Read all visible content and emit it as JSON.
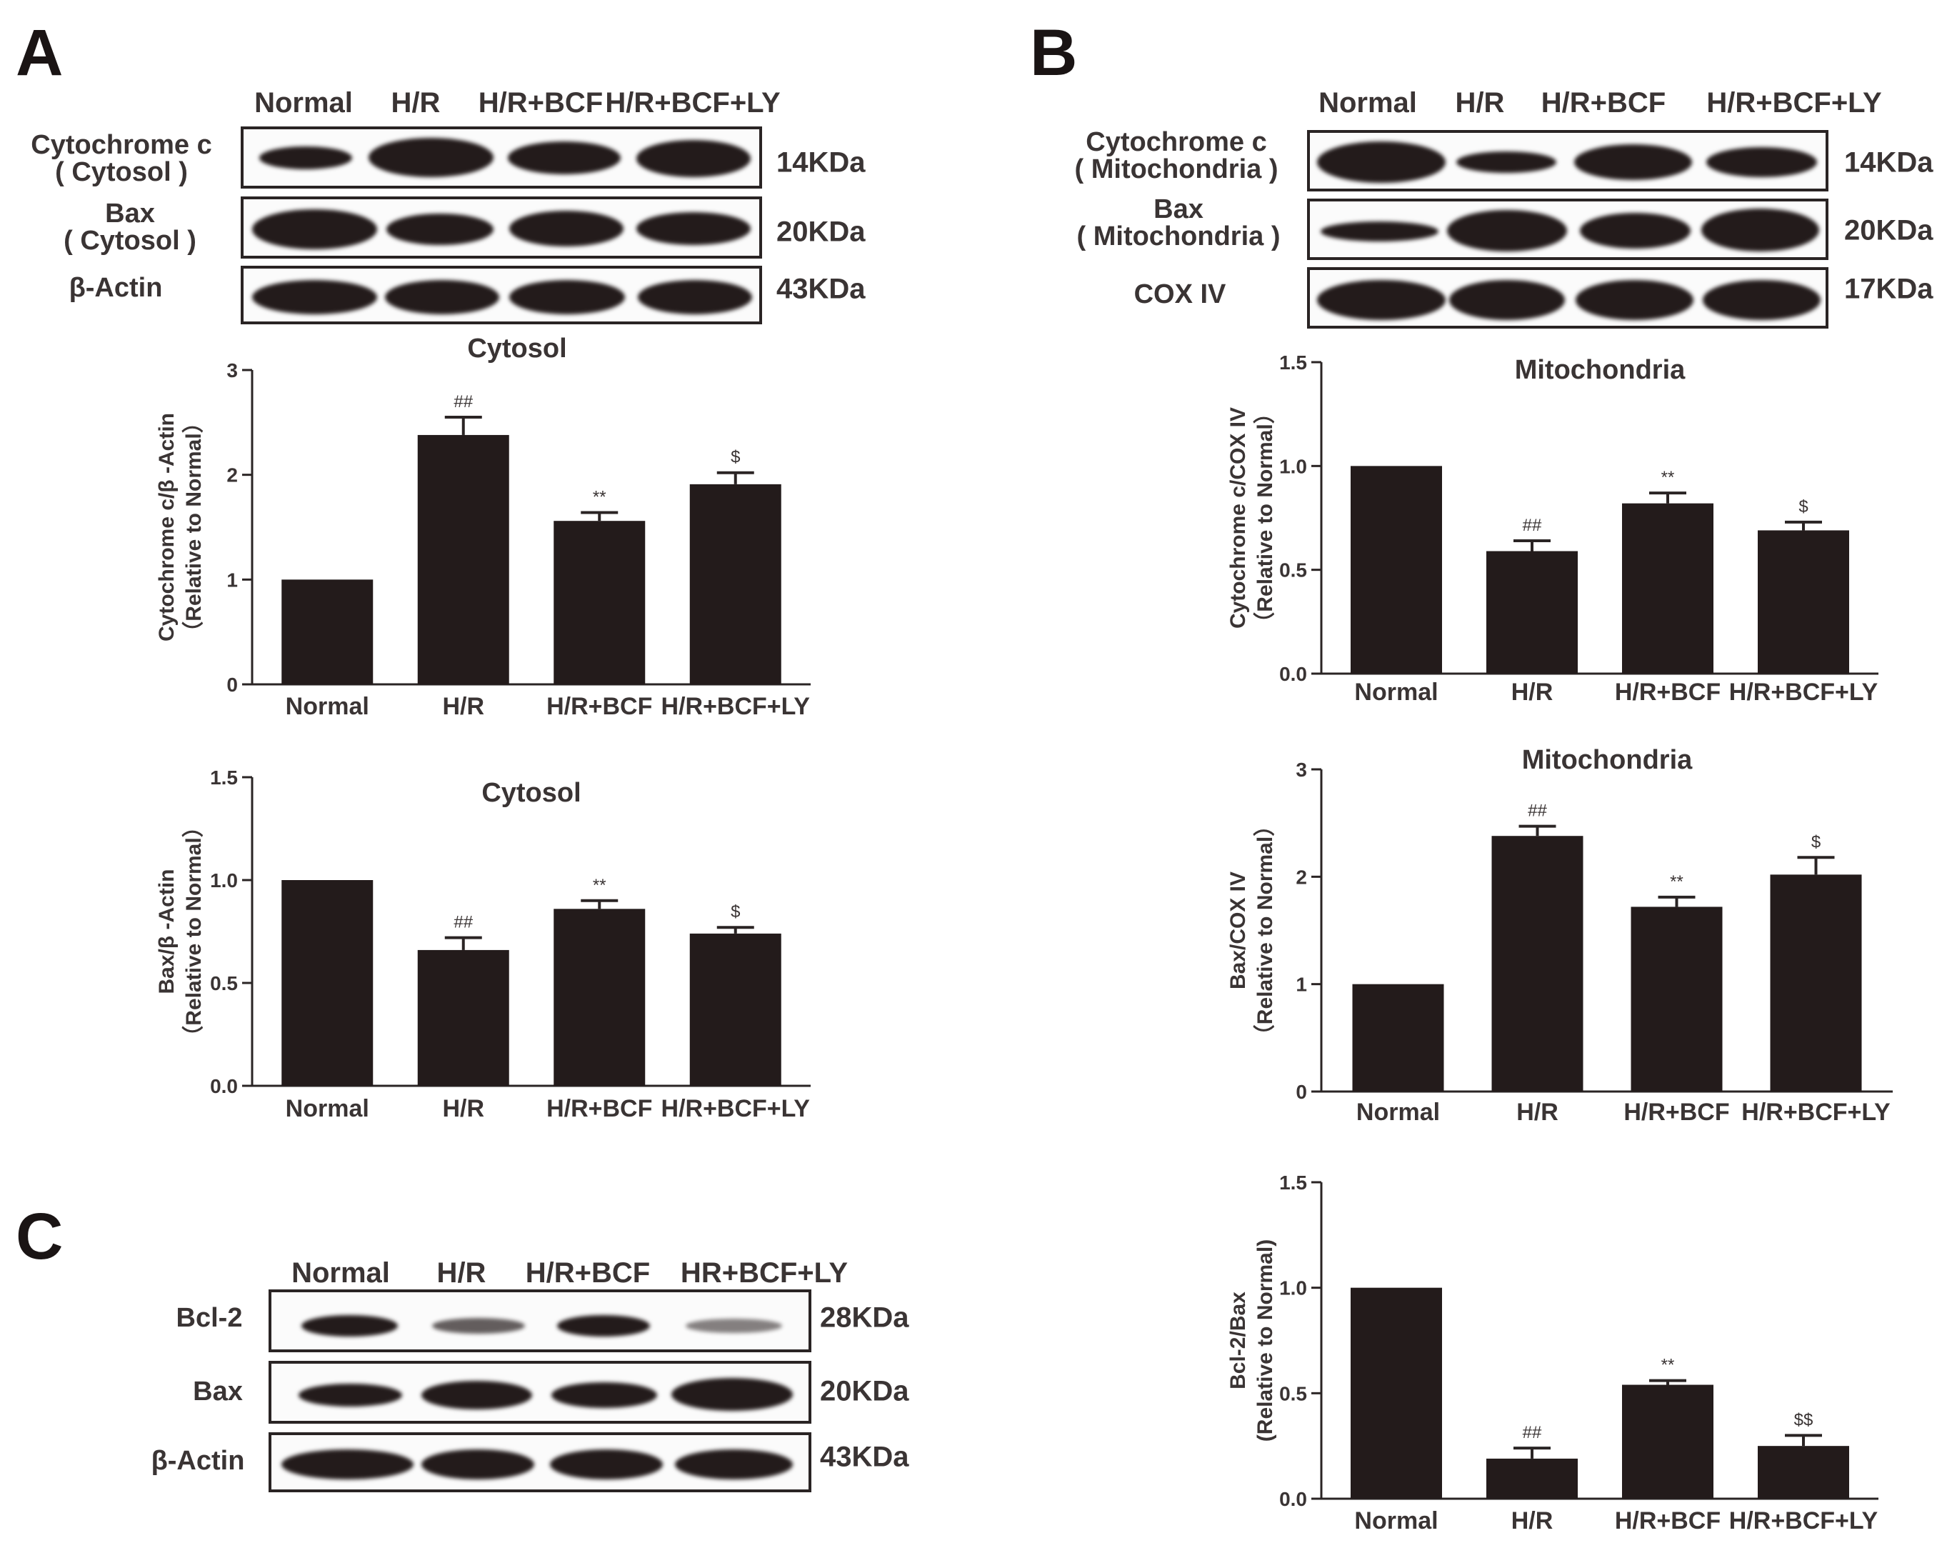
{
  "panels": {
    "A": {
      "letter": "A",
      "lanes": [
        "Normal",
        "H/R",
        "H/R+BCF",
        "H/R+BCF+LY"
      ],
      "blots": [
        {
          "label": "Cytochrome c\n( Cytosol )",
          "kda": "14KDa"
        },
        {
          "label": "Bax\n( Cytosol )",
          "kda": "20KDa"
        },
        {
          "label": "β-Actin",
          "kda": "43KDa"
        }
      ]
    },
    "B": {
      "letter": "B",
      "lanes": [
        "Normal",
        "H/R",
        "H/R+BCF",
        "H/R+BCF+LY"
      ],
      "blots": [
        {
          "label": "Cytochrome c\n( Mitochondria )",
          "kda": "14KDa"
        },
        {
          "label": "Bax\n( Mitochondria )",
          "kda": "20KDa"
        },
        {
          "label": "COX IV",
          "kda": "17KDa"
        }
      ]
    },
    "C": {
      "letter": "C",
      "lanes": [
        "Normal",
        "H/R",
        "H/R+BCF",
        "HR+BCF+LY"
      ],
      "blots": [
        {
          "label": "Bcl-2",
          "kda": "28KDa"
        },
        {
          "label": "Bax",
          "kda": "20KDa"
        },
        {
          "label": "β-Actin",
          "kda": "43KDa"
        }
      ]
    }
  },
  "colors": {
    "bar": "#231b1b",
    "text": "#3a3434"
  },
  "chart_data": [
    {
      "id": "A1",
      "type": "bar",
      "title": "Cytosol",
      "ylabel": "Cytochrome c/β -Actin",
      "ylabel2": "（Relative to Normal）",
      "categories": [
        "Normal",
        "H/R",
        "H/R+BCF",
        "H/R+BCF+LY"
      ],
      "values": [
        1.0,
        2.38,
        1.56,
        1.91
      ],
      "errors": [
        0,
        0.17,
        0.08,
        0.11
      ],
      "annotations": [
        "",
        "##",
        "**",
        "$"
      ],
      "ylim": [
        0,
        3
      ],
      "yticks": [
        "0",
        "1",
        "2",
        "3"
      ]
    },
    {
      "id": "A2",
      "type": "bar",
      "title": "Cytosol",
      "ylabel": "Bax/β -Actin",
      "ylabel2": "（Relative to Normal）",
      "categories": [
        "Normal",
        "H/R",
        "H/R+BCF",
        "H/R+BCF+LY"
      ],
      "values": [
        1.0,
        0.66,
        0.86,
        0.74
      ],
      "errors": [
        0,
        0.06,
        0.04,
        0.03
      ],
      "annotations": [
        "",
        "##",
        "**",
        "$"
      ],
      "ylim": [
        0,
        1.5
      ],
      "yticks": [
        "0.0",
        "0.5",
        "1.0",
        "1.5"
      ]
    },
    {
      "id": "B1",
      "type": "bar",
      "title": "Mitochondria",
      "ylabel": "Cytochrome c/COX IV",
      "ylabel2": "（Relative to Normal）",
      "categories": [
        "Normal",
        "H/R",
        "H/R+BCF",
        "H/R+BCF+LY"
      ],
      "values": [
        1.0,
        0.59,
        0.82,
        0.69
      ],
      "errors": [
        0,
        0.05,
        0.05,
        0.04
      ],
      "annotations": [
        "",
        "##",
        "**",
        "$"
      ],
      "ylim": [
        0,
        1.5
      ],
      "yticks": [
        "0.0",
        "0.5",
        "1.0",
        "1.5"
      ]
    },
    {
      "id": "B2",
      "type": "bar",
      "title": "Mitochondria",
      "ylabel": "Bax/COX IV",
      "ylabel2": "（Relative to Normal）",
      "categories": [
        "Normal",
        "H/R",
        "H/R+BCF",
        "H/R+BCF+LY"
      ],
      "values": [
        1.0,
        2.38,
        1.72,
        2.02
      ],
      "errors": [
        0,
        0.09,
        0.09,
        0.16
      ],
      "annotations": [
        "",
        "##",
        "**",
        "$"
      ],
      "ylim": [
        0,
        3
      ],
      "yticks": [
        "0",
        "1",
        "2",
        "3"
      ]
    },
    {
      "id": "C1",
      "type": "bar",
      "title": "",
      "ylabel": "Bcl-2/Bax",
      "ylabel2": "(Relative to Normal)",
      "categories": [
        "Normal",
        "H/R",
        "H/R+BCF",
        "H/R+BCF+LY"
      ],
      "values": [
        1.0,
        0.19,
        0.54,
        0.25
      ],
      "errors": [
        0,
        0.05,
        0.02,
        0.05
      ],
      "annotations": [
        "",
        "##",
        "**",
        "$$"
      ],
      "ylim": [
        0,
        1.5
      ],
      "yticks": [
        "0.0",
        "0.5",
        "1.0",
        "1.5"
      ]
    }
  ]
}
